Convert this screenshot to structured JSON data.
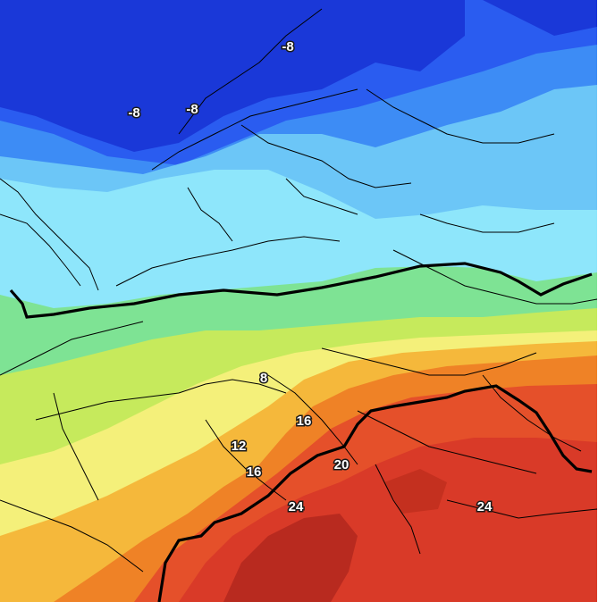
{
  "map": {
    "type": "temperature-forecast-map",
    "colors": {
      "deep_blue": "#1a38d8",
      "blue": "#2a5cf0",
      "mid_blue": "#3d8cf5",
      "light_blue": "#6cc6f7",
      "pale_cyan": "#8ee6fb",
      "green": "#7ee394",
      "yellow_green": "#c6ea5c",
      "yellow": "#f4f07a",
      "orange_yellow": "#f5b83b",
      "orange": "#ef8226",
      "red_orange": "#e5502a",
      "red": "#d93a28",
      "dark_red": "#b82a1f",
      "contour": "#000000"
    },
    "labels": [
      {
        "text": "-8"
      },
      {
        "text": "-8"
      },
      {
        "text": "-8"
      },
      {
        "text": "8"
      },
      {
        "text": "16"
      },
      {
        "text": "12"
      },
      {
        "text": "16"
      },
      {
        "text": "20"
      },
      {
        "text": "24"
      },
      {
        "text": "24"
      }
    ]
  }
}
